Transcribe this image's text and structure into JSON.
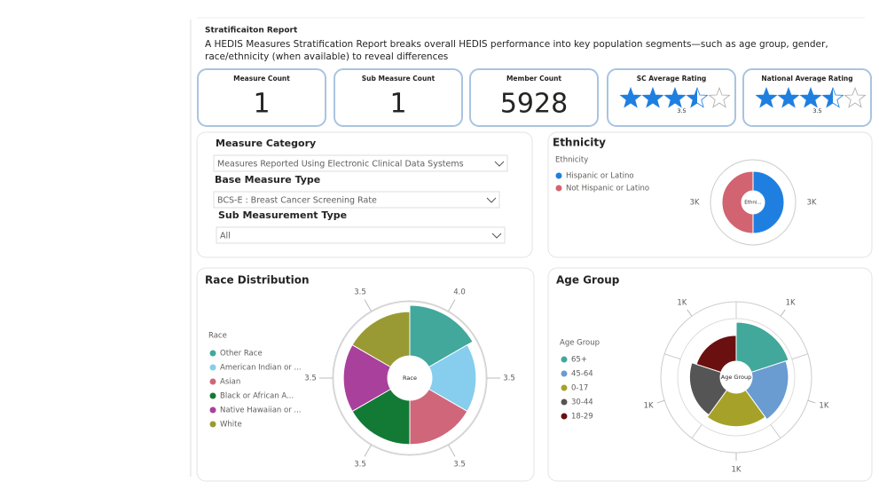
{
  "header": {
    "title": "Stratificaiton Report",
    "description": "A HEDIS Measures Stratification Report breaks overall HEDIS performance into key population segments—such as age group, gender, race/ethnicity (when available) to reveal differences"
  },
  "kpis": [
    {
      "label": "Measure Count",
      "value": 1
    },
    {
      "label": "Sub Measure Count",
      "value": 1
    },
    {
      "label": "Member Count",
      "value": 5928
    },
    {
      "label": "SC Average Rating",
      "value": 3.5,
      "display": "stars"
    },
    {
      "label": "National Average Rating",
      "value": 3.5,
      "display": "stars"
    }
  ],
  "filters": [
    {
      "label": "Measure Category",
      "selected": "Measures Reported Using Electronic Clinical Data Systems"
    },
    {
      "label": "Base Measure Type",
      "selected": "BCS-E : Breast Cancer Screening Rate"
    },
    {
      "label": "Sub Measurement Type",
      "selected": "All"
    }
  ],
  "chart_data": [
    {
      "type": "donut",
      "title": "Ethnicity",
      "legend_title": "Ethnicity",
      "center_label": "Ethni...",
      "categories": [
        "Hispanic or Latino",
        "Not Hispanic or Latino"
      ],
      "values": [
        2964,
        2964
      ],
      "value_labels": [
        "3K",
        "3K"
      ],
      "colors": [
        "#1f7fe0",
        "#d16470"
      ]
    },
    {
      "type": "rose",
      "title": "Race Distribution",
      "legend_title": "Race",
      "center_label": "Race",
      "categories": [
        "Other Race",
        "American Indian or ...",
        "Asian",
        "Black or African A...",
        "Native Hawaiian or ...",
        "White"
      ],
      "values": [
        4.0,
        3.5,
        3.5,
        3.5,
        3.5,
        3.5
      ],
      "value_labels": [
        "4.0",
        "3.5",
        "3.5",
        "3.5",
        "3.5",
        "3.5"
      ],
      "colors": [
        "#41a89b",
        "#86cdee",
        "#d0667a",
        "#127a35",
        "#a9409c",
        "#9a9a34"
      ]
    },
    {
      "type": "rose",
      "title": "Age Group",
      "legend_title": "Age Group",
      "center_label": "Age Group",
      "categories": [
        "65+",
        "45-64",
        "0-17",
        "30-44",
        "18-29"
      ],
      "values": [
        1400,
        1300,
        1200,
        1100,
        928
      ],
      "value_labels": [
        "1K",
        "1K",
        "1K",
        "1K",
        "1K"
      ],
      "colors": [
        "#41a89b",
        "#6a9bd1",
        "#a6a229",
        "#555555",
        "#6b1010"
      ]
    }
  ]
}
